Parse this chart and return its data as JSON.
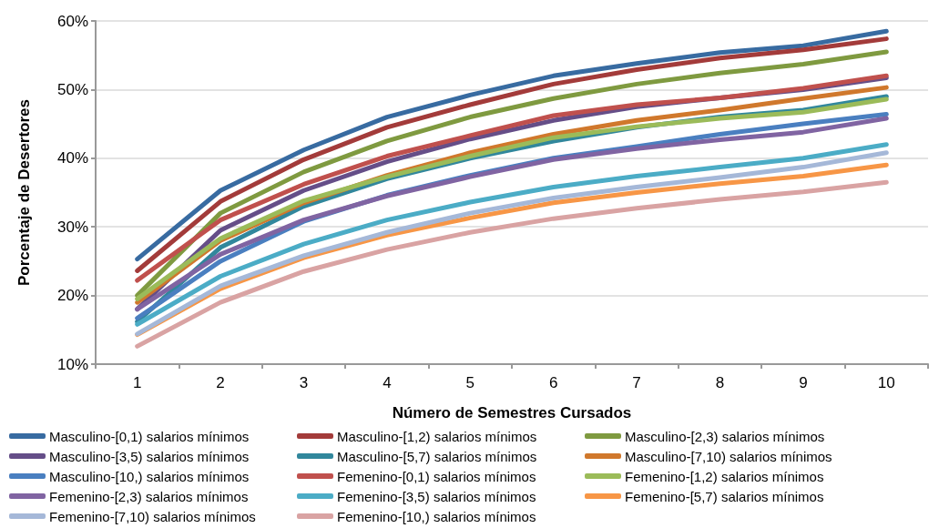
{
  "chart_data": {
    "type": "line",
    "xlabel": "Número de Semestres Cursados",
    "ylabel": "Porcentaje de Desertores",
    "categories": [
      "1",
      "2",
      "3",
      "4",
      "5",
      "6",
      "7",
      "8",
      "9",
      "10"
    ],
    "ylim": [
      10,
      60
    ],
    "yticks": [
      {
        "value": 10,
        "label": "10%"
      },
      {
        "value": 20,
        "label": "20%"
      },
      {
        "value": 30,
        "label": "30%"
      },
      {
        "value": 40,
        "label": "40%"
      },
      {
        "value": 50,
        "label": "50%"
      },
      {
        "value": 60,
        "label": "60%"
      }
    ],
    "grid": "y",
    "legend": "bottom",
    "marker": "none",
    "line_style": "solid",
    "series": [
      {
        "name": "Masculino-[0,1) salarios mínimos",
        "color": "#386ba1",
        "values": [
          25.3,
          35.3,
          41.2,
          46,
          49.2,
          52,
          53.8,
          55.4,
          56.4,
          58.5
        ]
      },
      {
        "name": "Masculino-[1,2) salarios mínimos",
        "color": "#a33b3a",
        "values": [
          23.6,
          33.7,
          39.8,
          44.5,
          47.8,
          50.8,
          52.9,
          54.6,
          55.8,
          57.4
        ]
      },
      {
        "name": "Masculino-[2,3) salarios mínimos",
        "color": "#7f9a40",
        "values": [
          20,
          32,
          38,
          42.5,
          46,
          48.7,
          50.8,
          52.4,
          53.7,
          55.5
        ]
      },
      {
        "name": "Masculino-[3,5) salarios mínimos",
        "color": "#654e88",
        "values": [
          18,
          29.5,
          35.3,
          39.5,
          42.8,
          45.5,
          47.5,
          48.8,
          50,
          51.7
        ]
      },
      {
        "name": "Masculino-[5,7) salarios mínimos",
        "color": "#31879c",
        "values": [
          16.2,
          27,
          33,
          37,
          40,
          42.5,
          44.5,
          46,
          47,
          49
        ]
      },
      {
        "name": "Masculino-[7,10) salarios mínimos",
        "color": "#d0782c",
        "values": [
          19,
          28,
          33.5,
          37.5,
          40.8,
          43.5,
          45.5,
          47,
          48.7,
          50.3
        ]
      },
      {
        "name": "Masculino-[10,) salarios mínimos",
        "color": "#4a7fc0",
        "values": [
          16.7,
          25,
          30.8,
          34.6,
          37.5,
          40,
          41.7,
          43.5,
          45,
          46.4
        ]
      },
      {
        "name": "Femenino-[0,1) salarios mínimos",
        "color": "#c0504d",
        "values": [
          22.2,
          31,
          36.2,
          40.3,
          43.3,
          46.2,
          47.8,
          48.8,
          50.2,
          52
        ]
      },
      {
        "name": "Femenino-[1,2) salarios mínimos",
        "color": "#9bbb59",
        "values": [
          19.5,
          28.3,
          33.8,
          37.3,
          40.3,
          43,
          44.6,
          45.8,
          46.7,
          48.6
        ]
      },
      {
        "name": "Femenino-[2,3) salarios mínimos",
        "color": "#8064a2",
        "values": [
          18,
          26,
          31,
          34.5,
          37.3,
          39.8,
          41.4,
          42.7,
          43.8,
          45.8
        ]
      },
      {
        "name": "Femenino-[3,5) salarios mínimos",
        "color": "#4bacc6",
        "values": [
          15.8,
          22.8,
          27.5,
          31,
          33.6,
          35.8,
          37.4,
          38.7,
          40,
          42
        ]
      },
      {
        "name": "Femenino-[5,7) salarios mínimos",
        "color": "#f79646",
        "values": [
          14.3,
          21,
          25.5,
          28.8,
          31.3,
          33.5,
          35,
          36.3,
          37.4,
          39
        ]
      },
      {
        "name": "Femenino-[7,10) salarios mínimos",
        "color": "#a5b8d8",
        "values": [
          14.4,
          21.4,
          25.8,
          29.2,
          32,
          34.2,
          35.8,
          37.2,
          38.7,
          40.8
        ]
      },
      {
        "name": "Femenino-[10,) salarios mínimos",
        "color": "#d9a3a3",
        "values": [
          12.6,
          19,
          23.5,
          26.7,
          29.2,
          31.2,
          32.7,
          34,
          35.1,
          36.5
        ]
      }
    ]
  }
}
